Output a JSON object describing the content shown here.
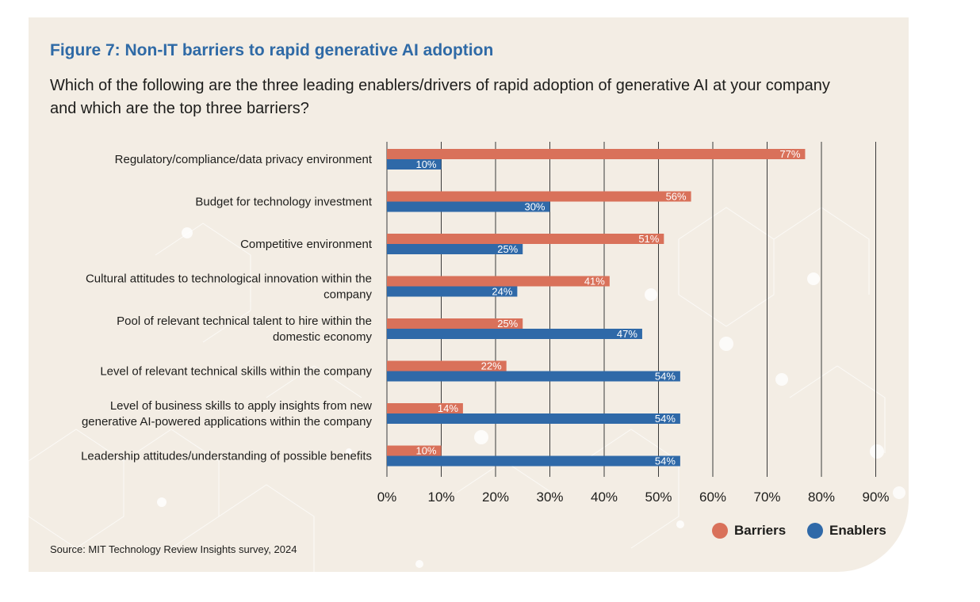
{
  "figure_title": "Figure 7: Non-IT barriers to rapid generative AI adoption",
  "question": "Which of the following are the three leading enablers/drivers of rapid adoption of generative AI at your company and which are the top three barriers?",
  "source": "Source: MIT Technology Review Insights survey, 2024",
  "colors": {
    "barriers": "#d9715a",
    "enablers": "#2f69a8",
    "title": "#2f6aa6",
    "background": "#f3ede4"
  },
  "chart_data": {
    "type": "bar",
    "orientation": "horizontal",
    "categories": [
      [
        "Regulatory/compliance/data privacy environment"
      ],
      [
        "Budget for technology investment"
      ],
      [
        "Competitive environment"
      ],
      [
        "Cultural attitudes to technological innovation within the",
        "company"
      ],
      [
        "Pool of relevant technical talent to hire within the",
        "domestic economy"
      ],
      [
        "Level of relevant technical skills within the company"
      ],
      [
        "Level of business skills to apply insights from new",
        "generative AI-powered applications within the company"
      ],
      [
        "Leadership attitudes/understanding of possible benefits"
      ]
    ],
    "series": [
      {
        "name": "Barriers",
        "color": "#d9715a",
        "values": [
          77,
          56,
          51,
          41,
          25,
          22,
          14,
          10
        ]
      },
      {
        "name": "Enablers",
        "color": "#2f69a8",
        "values": [
          10,
          30,
          25,
          24,
          47,
          54,
          54,
          54
        ]
      }
    ],
    "xlim": [
      0,
      90
    ],
    "xticks": [
      0,
      10,
      20,
      30,
      40,
      50,
      60,
      70,
      80,
      90
    ],
    "value_suffix": "%",
    "grid": true,
    "legend_position": "bottom-right"
  }
}
